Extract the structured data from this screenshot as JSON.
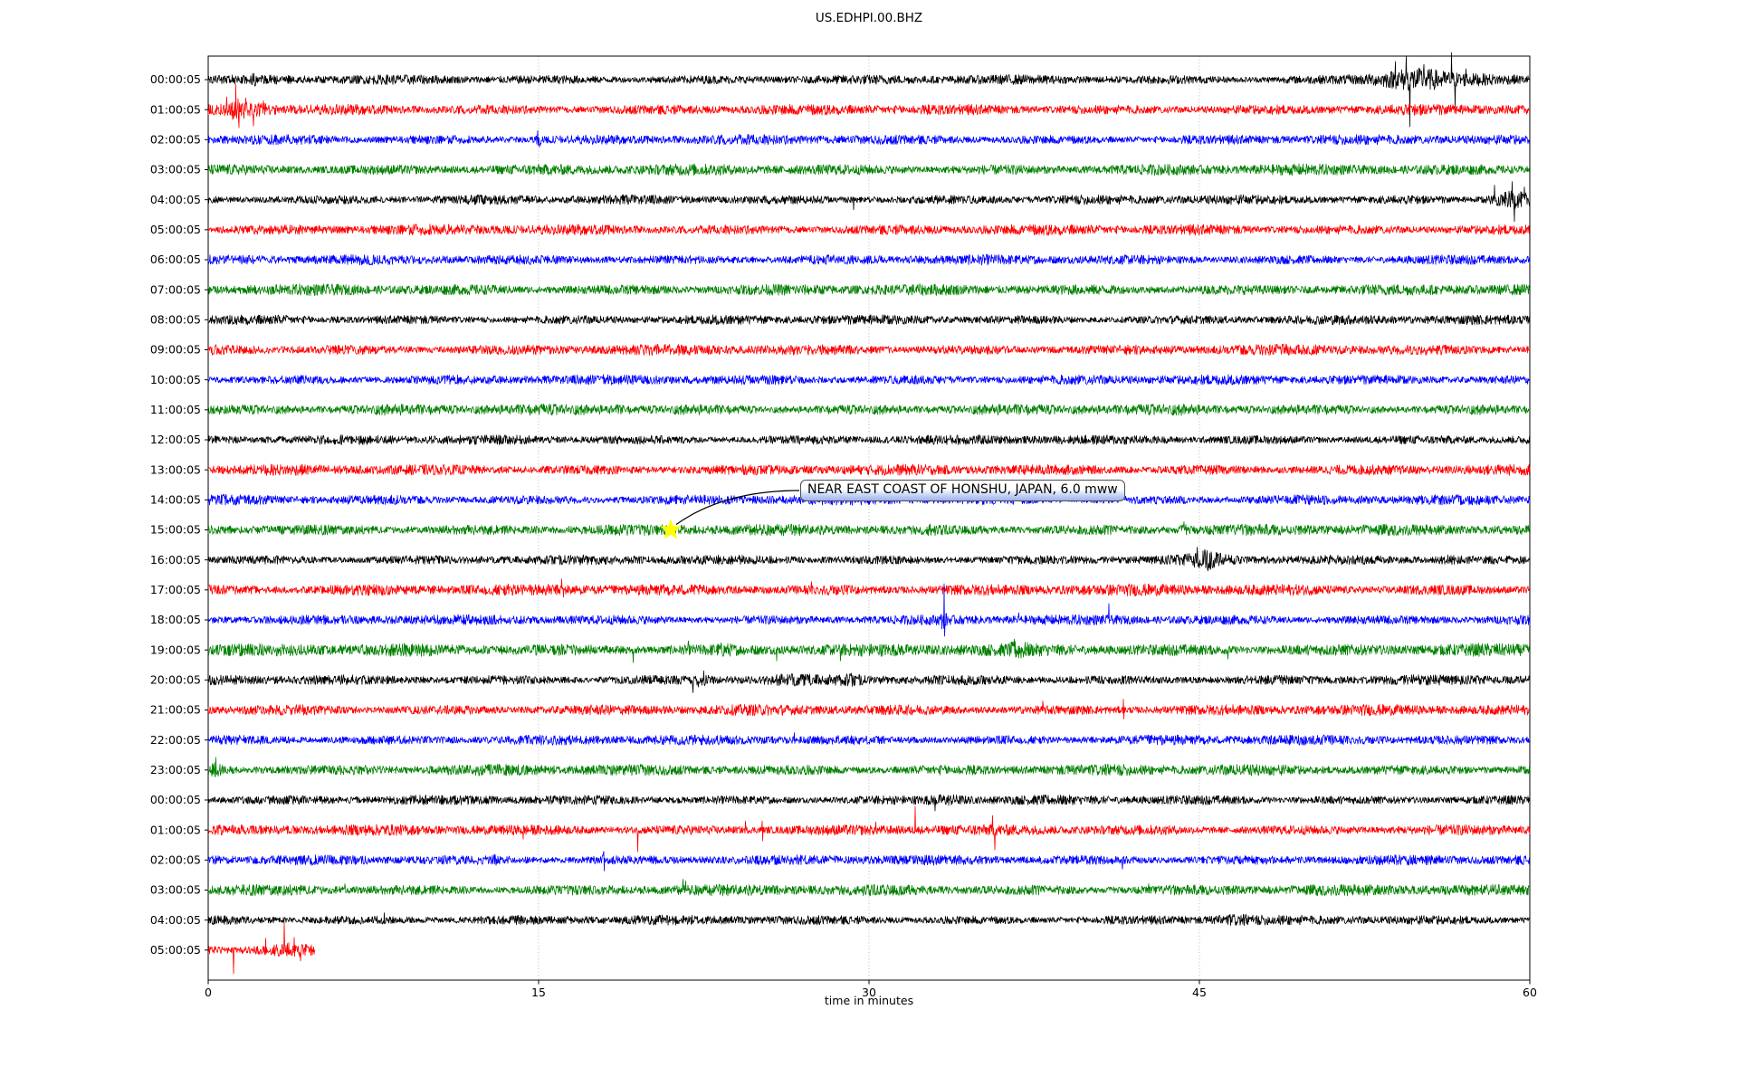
{
  "chart_data": {
    "type": "line",
    "subtype": "seismogram-dayplot",
    "title": "US.EDHPI.00.BHZ",
    "xlabel": "time in minutes",
    "ylabel": "",
    "xlim": [
      0,
      60
    ],
    "xticks": [
      0,
      15,
      30,
      45,
      60
    ],
    "grid_x": [
      15,
      30,
      45
    ],
    "grid_style": "dotted-gray-vertical",
    "legend": "none",
    "trace_color_cycle": [
      "#000000",
      "#ff0000",
      "#0000ff",
      "#008000"
    ],
    "annotation": {
      "text": "NEAR EAST COAST OF HONSHU, JAPAN, 6.0 mww",
      "row_index": 15,
      "t_minutes": 21.0,
      "marker": "star",
      "marker_color": "#ffff00",
      "box_border_color": "#4d4d4d",
      "box_fill_bottom": "#9db2ec"
    },
    "rows": [
      {
        "label": "00:00:05",
        "color": "#000000",
        "noise": 4.4,
        "events": [
          {
            "type": "burst",
            "t": 2.1,
            "sigma": 0.15,
            "amp": 2.5
          },
          {
            "type": "burst",
            "t": 6.0,
            "sigma": 0.12,
            "amp": 2.5
          },
          {
            "type": "burst",
            "t": 54.7,
            "sigma": 1.5,
            "amp": 7
          },
          {
            "type": "burst",
            "t": 55.2,
            "sigma": 3.0,
            "amp": 2.5
          },
          {
            "type": "spike",
            "t": 53.9,
            "amp": 20
          },
          {
            "type": "spike",
            "t": 54.4,
            "amp": 26
          },
          {
            "type": "spike",
            "t": 54.55,
            "amp": -52
          },
          {
            "type": "spike",
            "t": 55.2,
            "amp": 17
          },
          {
            "type": "spike",
            "t": 56.45,
            "amp": 30
          },
          {
            "type": "spike",
            "t": 56.6,
            "amp": -30
          },
          {
            "type": "spike",
            "t": 57.1,
            "amp": 12
          }
        ]
      },
      {
        "label": "01:00:05",
        "color": "#ff0000",
        "noise": 4.9,
        "events": [
          {
            "type": "burst",
            "t": 1.3,
            "sigma": 0.45,
            "amp": 7
          },
          {
            "type": "burst",
            "t": 2.2,
            "sigma": 0.7,
            "amp": 3
          },
          {
            "type": "spike",
            "t": 0.85,
            "amp": 14
          },
          {
            "type": "spike",
            "t": 1.25,
            "amp": 28
          },
          {
            "type": "spike",
            "t": 1.4,
            "amp": -20
          },
          {
            "type": "spike",
            "t": 1.7,
            "amp": 13
          },
          {
            "type": "spike",
            "t": 2.05,
            "amp": -18
          },
          {
            "type": "spike",
            "t": 2.5,
            "amp": 10
          }
        ]
      },
      {
        "label": "02:00:05",
        "color": "#0000ff",
        "noise": 4.6,
        "events": [
          {
            "type": "burst",
            "t": 15.0,
            "sigma": 0.1,
            "amp": 5
          },
          {
            "type": "spike",
            "t": 14.95,
            "amp": 10
          },
          {
            "type": "spike",
            "t": 15.05,
            "amp": -8
          }
        ]
      },
      {
        "label": "03:00:05",
        "color": "#008000",
        "noise": 5.1,
        "events": []
      },
      {
        "label": "04:00:05",
        "color": "#000000",
        "noise": 4.4,
        "events": [
          {
            "type": "spike",
            "t": 29.3,
            "amp": -11
          },
          {
            "type": "burst",
            "t": 59.2,
            "sigma": 0.9,
            "amp": 6
          },
          {
            "type": "spike",
            "t": 58.4,
            "amp": 16
          },
          {
            "type": "spike",
            "t": 59.2,
            "amp": 20
          },
          {
            "type": "spike",
            "t": 59.3,
            "amp": -24
          },
          {
            "type": "spike",
            "t": 59.75,
            "amp": 14
          }
        ]
      },
      {
        "label": "05:00:05",
        "color": "#ff0000",
        "noise": 4.9,
        "events": []
      },
      {
        "label": "06:00:05",
        "color": "#0000ff",
        "noise": 4.6,
        "events": []
      },
      {
        "label": "07:00:05",
        "color": "#008000",
        "noise": 5.1,
        "events": []
      },
      {
        "label": "08:00:05",
        "color": "#000000",
        "noise": 4.4,
        "events": []
      },
      {
        "label": "09:00:05",
        "color": "#ff0000",
        "noise": 4.9,
        "events": []
      },
      {
        "label": "10:00:05",
        "color": "#0000ff",
        "noise": 4.6,
        "events": []
      },
      {
        "label": "11:00:05",
        "color": "#008000",
        "noise": 5.1,
        "events": [
          {
            "type": "burst",
            "t": 18.6,
            "sigma": 0.4,
            "amp": 1.5
          }
        ]
      },
      {
        "label": "12:00:05",
        "color": "#000000",
        "noise": 4.4,
        "events": []
      },
      {
        "label": "13:00:05",
        "color": "#ff0000",
        "noise": 4.9,
        "events": []
      },
      {
        "label": "14:00:05",
        "color": "#0000ff",
        "noise": 4.6,
        "events": []
      },
      {
        "label": "15:00:05",
        "color": "#008000",
        "noise": 5.1,
        "events": [
          {
            "type": "burst",
            "t": 32.8,
            "sigma": 0.15,
            "amp": 4
          },
          {
            "type": "burst",
            "t": 44.3,
            "sigma": 0.2,
            "amp": 2
          },
          {
            "type": "spike",
            "t": 44.3,
            "amp": 9
          }
        ]
      },
      {
        "label": "16:00:05",
        "color": "#000000",
        "noise": 4.4,
        "events": [
          {
            "type": "burst",
            "t": 45.3,
            "sigma": 0.7,
            "amp": 6
          },
          {
            "type": "burst",
            "t": 56.3,
            "sigma": 0.5,
            "amp": 2
          },
          {
            "type": "spike",
            "t": 44.9,
            "amp": 14
          },
          {
            "type": "spike",
            "t": 45.4,
            "amp": -12
          }
        ]
      },
      {
        "label": "17:00:05",
        "color": "#ff0000",
        "noise": 5.3,
        "events": [
          {
            "type": "spike",
            "t": 16.05,
            "amp": 12
          },
          {
            "type": "spike",
            "t": 16.12,
            "amp": -8
          },
          {
            "type": "spike",
            "t": 27.4,
            "amp": 9
          }
        ]
      },
      {
        "label": "18:00:05",
        "color": "#0000ff",
        "noise": 4.6,
        "events": [
          {
            "type": "burst",
            "t": 33.4,
            "sigma": 0.15,
            "amp": 4
          },
          {
            "type": "spike",
            "t": 33.3,
            "amp": -10
          },
          {
            "type": "spike",
            "t": 33.42,
            "amp": 40,
            "amp2": -18
          },
          {
            "type": "spike",
            "t": 36.8,
            "amp": 8
          },
          {
            "type": "spike",
            "t": 40.9,
            "amp": 18
          }
        ]
      },
      {
        "label": "19:00:05",
        "color": "#008000",
        "noise": 5.8,
        "events": [
          {
            "type": "burst",
            "t": 23.4,
            "sigma": 0.4,
            "amp": 2
          },
          {
            "type": "burst",
            "t": 36.8,
            "sigma": 0.35,
            "amp": 4
          },
          {
            "type": "spike",
            "t": 19.3,
            "amp": -14
          },
          {
            "type": "spike",
            "t": 21.8,
            "amp": 10
          },
          {
            "type": "spike",
            "t": 25.8,
            "amp": -12
          },
          {
            "type": "spike",
            "t": 28.7,
            "amp": -12
          },
          {
            "type": "spike",
            "t": 36.6,
            "amp": 12
          },
          {
            "type": "spike",
            "t": 46.3,
            "amp": -10
          }
        ]
      },
      {
        "label": "20:00:05",
        "color": "#000000",
        "noise": 4.6,
        "events": [
          {
            "type": "burst",
            "t": 22.4,
            "sigma": 0.35,
            "amp": 4
          },
          {
            "type": "burst",
            "t": 26.3,
            "sigma": 1.0,
            "amp": 1.5
          },
          {
            "type": "burst",
            "t": 29.2,
            "sigma": 0.5,
            "amp": 2.5
          },
          {
            "type": "spike",
            "t": 22.0,
            "amp": -14
          },
          {
            "type": "spike",
            "t": 22.5,
            "amp": 10
          }
        ]
      },
      {
        "label": "21:00:05",
        "color": "#ff0000",
        "noise": 4.9,
        "events": [
          {
            "type": "spike",
            "t": 37.9,
            "amp": 10
          },
          {
            "type": "spike",
            "t": 41.55,
            "amp": 12,
            "amp2": -10
          }
        ]
      },
      {
        "label": "22:00:05",
        "color": "#0000ff",
        "noise": 4.6,
        "events": [
          {
            "type": "spike",
            "t": 26.6,
            "amp": 8
          }
        ]
      },
      {
        "label": "23:00:05",
        "color": "#008000",
        "noise": 5.1,
        "events": [
          {
            "type": "burst",
            "t": 0.35,
            "sigma": 0.25,
            "amp": 4
          },
          {
            "type": "spike",
            "t": 0.35,
            "amp": 14
          }
        ]
      },
      {
        "label": "00:00:05",
        "color": "#000000",
        "noise": 4.4,
        "events": [
          {
            "type": "burst",
            "t": 33.6,
            "sigma": 0.8,
            "amp": 2.5
          },
          {
            "type": "spike",
            "t": 33.0,
            "amp": -12
          }
        ]
      },
      {
        "label": "01:00:05",
        "color": "#ff0000",
        "noise": 4.9,
        "events": [
          {
            "type": "spike",
            "t": 14.3,
            "amp": -10
          },
          {
            "type": "spike",
            "t": 19.5,
            "amp": -24
          },
          {
            "type": "spike",
            "t": 24.4,
            "amp": 10
          },
          {
            "type": "spike",
            "t": 25.15,
            "amp": 10,
            "amp2": -12
          },
          {
            "type": "spike",
            "t": 30.3,
            "amp": 9
          },
          {
            "type": "spike",
            "t": 32.1,
            "amp": 26
          },
          {
            "type": "spike",
            "t": 35.6,
            "amp": 16
          },
          {
            "type": "spike",
            "t": 35.72,
            "amp": -22
          }
        ]
      },
      {
        "label": "02:00:05",
        "color": "#0000ff",
        "noise": 4.6,
        "events": [
          {
            "type": "burst",
            "t": 13.0,
            "sigma": 0.2,
            "amp": 2
          },
          {
            "type": "burst",
            "t": 18.0,
            "sigma": 0.07,
            "amp": 9
          },
          {
            "type": "spike",
            "t": 41.5,
            "amp": -10
          }
        ]
      },
      {
        "label": "03:00:05",
        "color": "#008000",
        "noise": 5.1,
        "events": [
          {
            "type": "spike",
            "t": 6.2,
            "amp": 7
          },
          {
            "type": "spike",
            "t": 21.55,
            "amp": 12
          },
          {
            "type": "spike",
            "t": 21.68,
            "amp": 10
          },
          {
            "type": "spike",
            "t": 42.7,
            "amp": 7
          }
        ]
      },
      {
        "label": "04:00:05",
        "color": "#000000",
        "noise": 4.4,
        "events": [
          {
            "type": "spike",
            "t": 8.0,
            "amp": 8
          },
          {
            "type": "burst",
            "t": 46.5,
            "sigma": 0.8,
            "amp": 2.5
          }
        ]
      },
      {
        "label": "05:00:05",
        "color": "#ff0000",
        "noise": 5.5,
        "end": 4.85,
        "events": [
          {
            "type": "burst",
            "t": 3.6,
            "sigma": 0.7,
            "amp": 3
          },
          {
            "type": "spike",
            "t": 1.15,
            "amp": -26
          },
          {
            "type": "spike",
            "t": 2.6,
            "amp": 13
          },
          {
            "type": "spike",
            "t": 3.45,
            "amp": 31
          },
          {
            "type": "spike",
            "t": 3.9,
            "amp": 14
          },
          {
            "type": "spike",
            "t": 4.2,
            "amp": -12
          }
        ]
      }
    ]
  }
}
